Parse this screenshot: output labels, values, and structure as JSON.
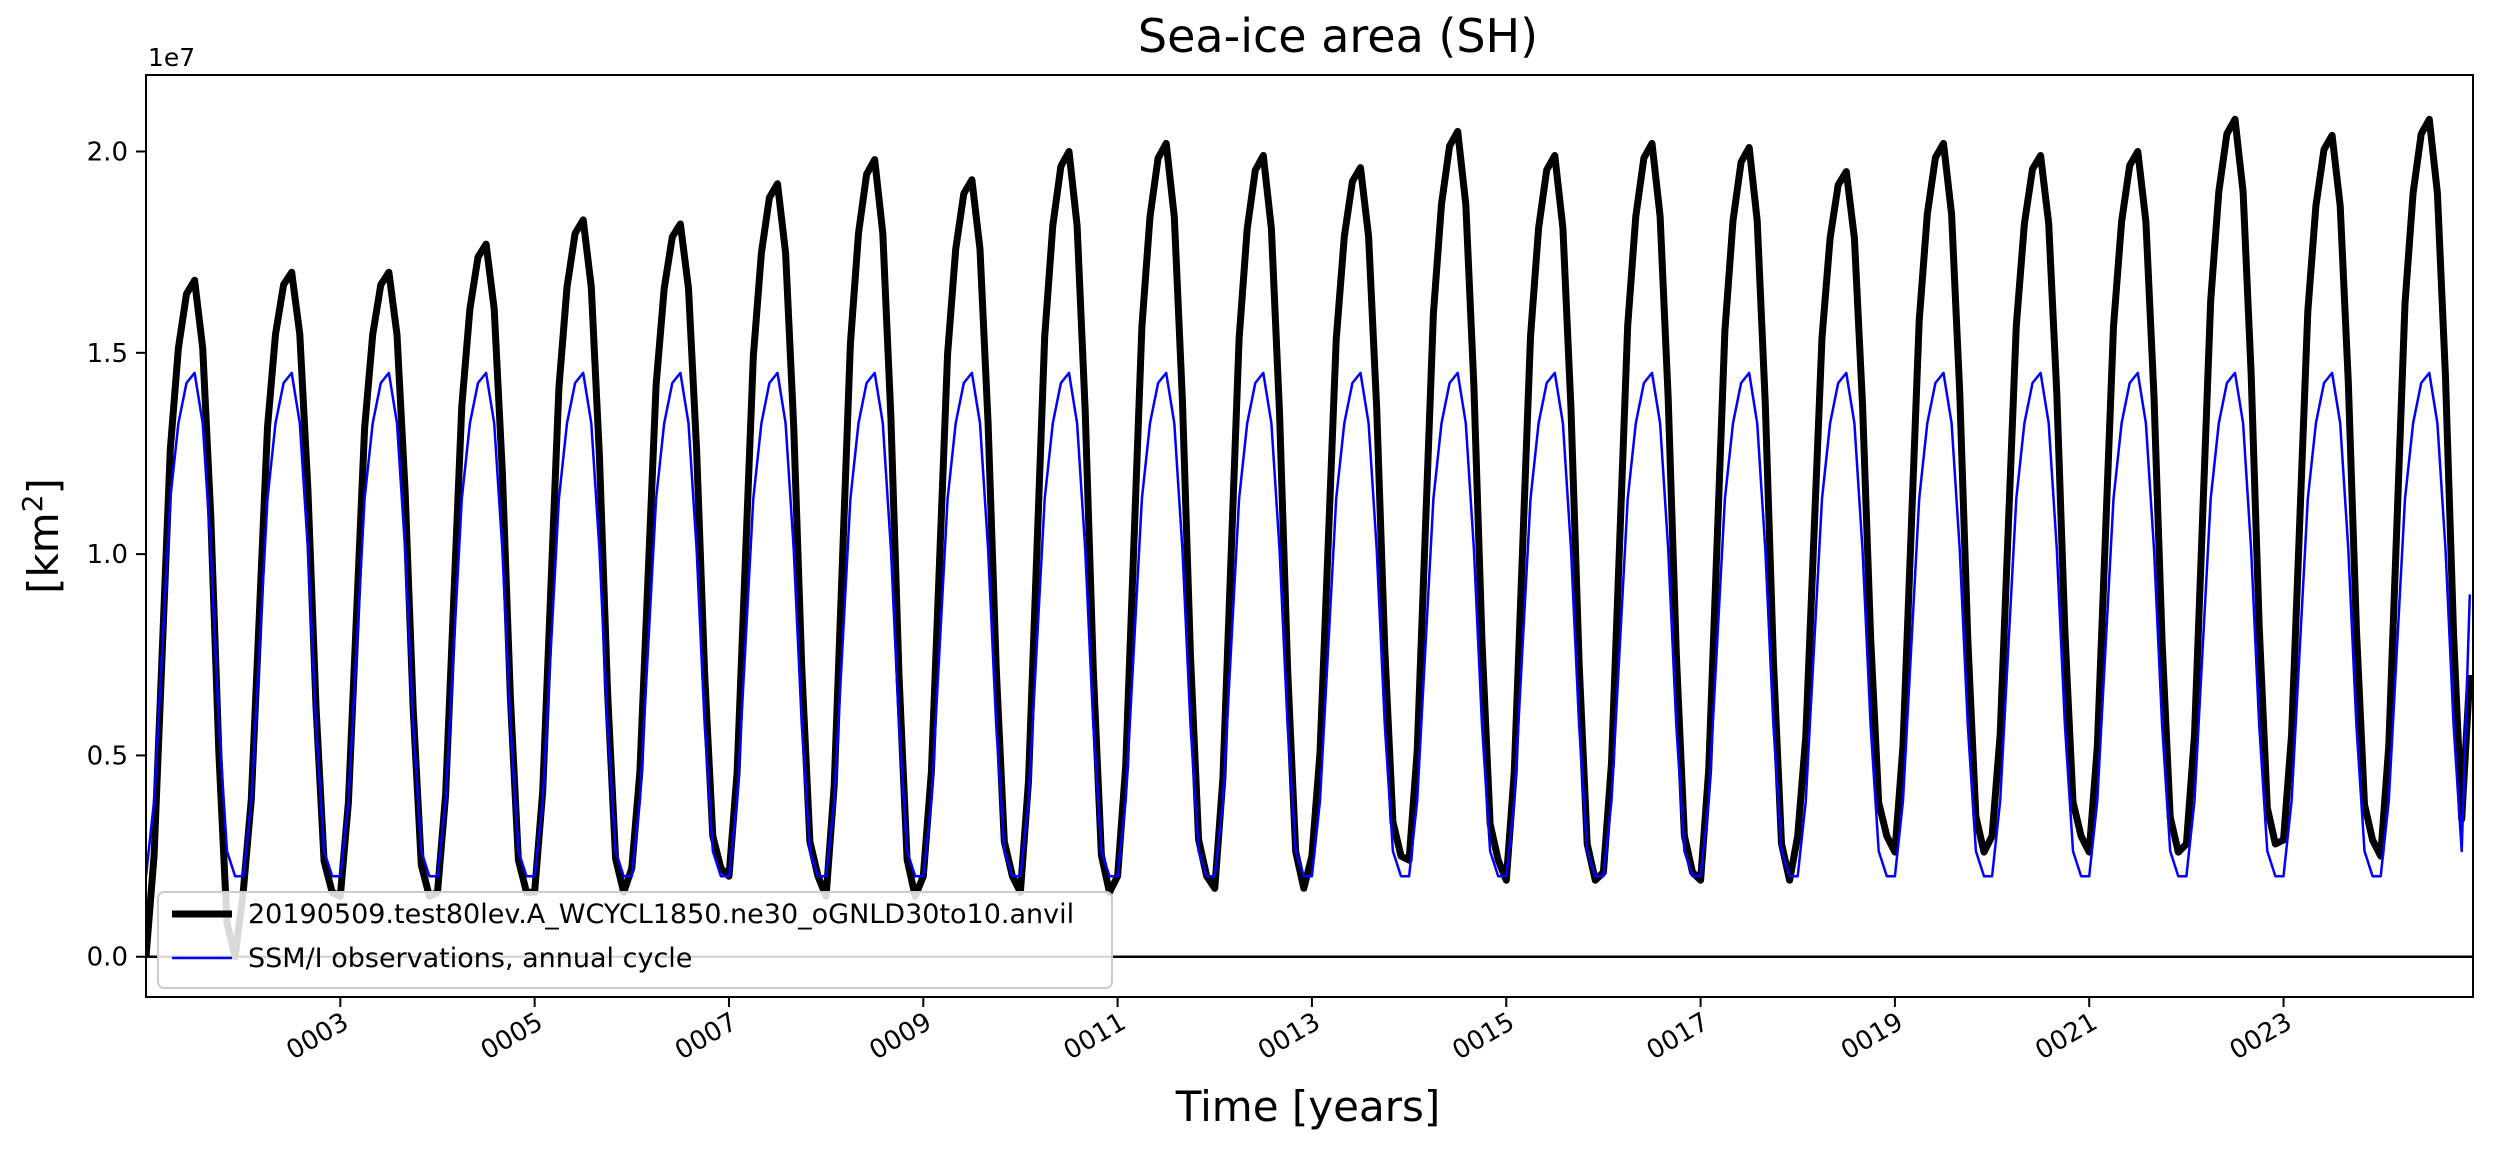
{
  "chart_data": {
    "type": "line",
    "title": "Sea-ice area (SH)",
    "xlabel": "Time [years]",
    "ylabel": "[km²]",
    "ylabel_base": "[km",
    "ylabel_sup": "2",
    "ylabel_tail": "]",
    "y_offset_text": "1e7",
    "xlim": [
      1.0,
      24.95
    ],
    "ylim": [
      -1000000,
      21900000
    ],
    "x_units": "years",
    "y_ticks": [
      0,
      5000000,
      10000000,
      15000000,
      20000000
    ],
    "y_tick_labels": [
      "0.0",
      "0.5",
      "1.0",
      "1.5",
      "2.0"
    ],
    "x_ticks": [
      3,
      5,
      7,
      9,
      11,
      13,
      15,
      17,
      19,
      21,
      23
    ],
    "x_tick_labels": [
      "0003",
      "0005",
      "0007",
      "0009",
      "0011",
      "0013",
      "0015",
      "0017",
      "0019",
      "0021",
      "0023"
    ],
    "grid": false,
    "legend_position": "lower-left",
    "hline_y": 0,
    "seasonal_month_fractions": [
      0.0,
      0.15,
      0.45,
      0.75,
      0.9,
      0.98,
      1.0,
      0.9,
      0.65,
      0.3,
      0.05,
      0.0
    ],
    "series": [
      {
        "name": "20190509.test80lev.A_WCYCL1850.ne30_oGNLD30to10.anvil",
        "color": "#000000",
        "start_year": 1,
        "annual_min": [
          0,
          1600000,
          1500000,
          1600000,
          1600000,
          2200000,
          2000000,
          1500000,
          2000000,
          1600000,
          2000000,
          1700000,
          2500000,
          2400000,
          1900000,
          2100000,
          1900000,
          3000000,
          2600000,
          3000000,
          2600000,
          2800000,
          2900000,
          2500000
        ],
        "annual_max": [
          16800000,
          17000000,
          17000000,
          17700000,
          18300000,
          18200000,
          19200000,
          19800000,
          19300000,
          20000000,
          20200000,
          19900000,
          19600000,
          20500000,
          19900000,
          20200000,
          20100000,
          19500000,
          20200000,
          19900000,
          20000000,
          20800000,
          20400000,
          20800000
        ],
        "end_value": 7000000
      },
      {
        "name": "SSM/I observations, annual cycle",
        "color": "#0000ff",
        "start_year": 1,
        "annual_min": [
          2000000
        ],
        "annual_max": [
          14500000
        ],
        "end_value": 9000000
      }
    ]
  }
}
